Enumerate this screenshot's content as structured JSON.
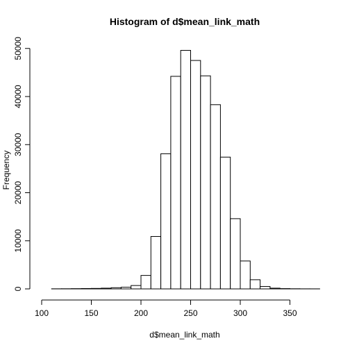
{
  "chart_data": {
    "type": "bar",
    "title": "Histogram of d$mean_link_math",
    "xlabel": "d$mean_link_math",
    "ylabel": "Frequency",
    "xlim": [
      110,
      380
    ],
    "ylim": [
      0,
      50000
    ],
    "xticks": [
      100,
      150,
      200,
      250,
      300,
      350
    ],
    "yticks": [
      0,
      10000,
      20000,
      30000,
      40000,
      50000
    ],
    "bin_width": 10,
    "bins": [
      {
        "x0": 110,
        "x1": 120,
        "value": 20
      },
      {
        "x0": 120,
        "x1": 130,
        "value": 30
      },
      {
        "x0": 130,
        "x1": 140,
        "value": 50
      },
      {
        "x0": 140,
        "x1": 150,
        "value": 80
      },
      {
        "x0": 150,
        "x1": 160,
        "value": 100
      },
      {
        "x0": 160,
        "x1": 170,
        "value": 150
      },
      {
        "x0": 170,
        "x1": 180,
        "value": 250
      },
      {
        "x0": 180,
        "x1": 190,
        "value": 350
      },
      {
        "x0": 190,
        "x1": 200,
        "value": 700
      },
      {
        "x0": 200,
        "x1": 210,
        "value": 2800
      },
      {
        "x0": 210,
        "x1": 220,
        "value": 10900
      },
      {
        "x0": 220,
        "x1": 230,
        "value": 28100
      },
      {
        "x0": 230,
        "x1": 240,
        "value": 44200
      },
      {
        "x0": 240,
        "x1": 250,
        "value": 49600
      },
      {
        "x0": 250,
        "x1": 260,
        "value": 47500
      },
      {
        "x0": 260,
        "x1": 270,
        "value": 44300
      },
      {
        "x0": 270,
        "x1": 280,
        "value": 38300
      },
      {
        "x0": 280,
        "x1": 290,
        "value": 27400
      },
      {
        "x0": 290,
        "x1": 300,
        "value": 14600
      },
      {
        "x0": 300,
        "x1": 310,
        "value": 5800
      },
      {
        "x0": 310,
        "x1": 320,
        "value": 1900
      },
      {
        "x0": 320,
        "x1": 330,
        "value": 500
      },
      {
        "x0": 330,
        "x1": 340,
        "value": 150
      },
      {
        "x0": 340,
        "x1": 350,
        "value": 60
      },
      {
        "x0": 350,
        "x1": 360,
        "value": 30
      },
      {
        "x0": 360,
        "x1": 370,
        "value": 15
      },
      {
        "x0": 370,
        "x1": 380,
        "value": 10
      }
    ],
    "grid": false,
    "legend": "none"
  }
}
